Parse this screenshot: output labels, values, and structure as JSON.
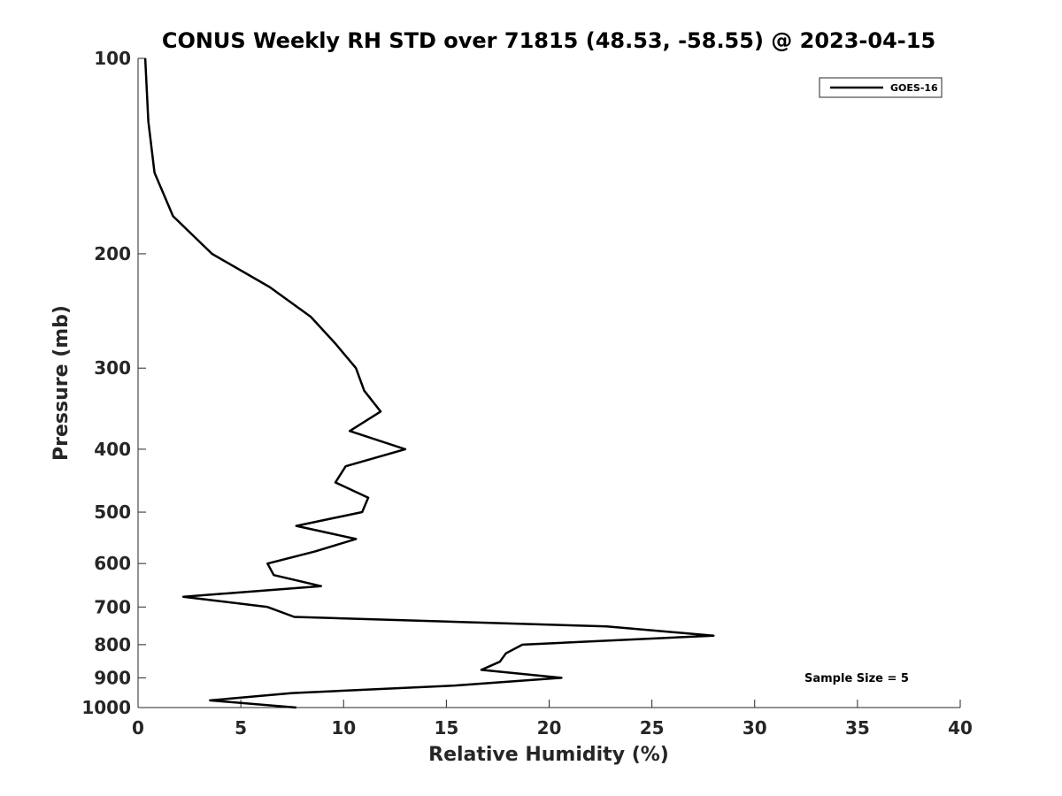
{
  "chart_data": {
    "type": "line",
    "title": "CONUS Weekly RH STD over 71815 (48.53, -58.55) @ 2023-04-15",
    "xlabel": "Relative Humidity (%)",
    "ylabel": "Pressure (mb)",
    "xlim": [
      0,
      40
    ],
    "ylim": [
      100,
      1000
    ],
    "y_scale": "log",
    "y_reversed": true,
    "x_ticks": [
      0,
      5,
      10,
      15,
      20,
      25,
      30,
      35,
      40
    ],
    "y_ticks": [
      100,
      200,
      300,
      400,
      500,
      600,
      700,
      800,
      900,
      1000
    ],
    "grid": false,
    "legend": {
      "position": "top-right",
      "entries": [
        "GOES-16"
      ]
    },
    "annotation": "Sample Size = 5",
    "series": [
      {
        "name": "GOES-16",
        "color": "#000000",
        "points": [
          [
            0.35,
            100
          ],
          [
            0.5,
            125
          ],
          [
            0.8,
            150
          ],
          [
            1.7,
            175
          ],
          [
            3.6,
            200.0
          ],
          [
            6.4,
            225
          ],
          [
            8.4,
            250
          ],
          [
            9.6,
            275
          ],
          [
            10.6,
            300
          ],
          [
            11.0,
            325
          ],
          [
            11.8,
            350
          ],
          [
            10.3,
            375
          ],
          [
            13.0,
            400
          ],
          [
            10.1,
            425
          ],
          [
            9.6,
            450
          ],
          [
            11.2,
            475
          ],
          [
            10.9,
            500
          ],
          [
            7.7,
            525
          ],
          [
            10.6,
            550
          ],
          [
            8.6,
            575
          ],
          [
            6.3,
            600
          ],
          [
            6.6,
            625
          ],
          [
            8.9,
            650
          ],
          [
            2.2,
            675
          ],
          [
            6.3,
            700
          ],
          [
            7.6,
            725
          ],
          [
            22.8,
            750
          ],
          [
            28.0,
            775
          ],
          [
            18.7,
            800
          ],
          [
            17.9,
            825
          ],
          [
            17.6,
            850
          ],
          [
            16.7,
            875
          ],
          [
            20.6,
            900
          ],
          [
            15.4,
            925
          ],
          [
            7.5,
            950
          ],
          [
            3.5,
            975
          ],
          [
            7.7,
            1000
          ]
        ]
      }
    ]
  }
}
